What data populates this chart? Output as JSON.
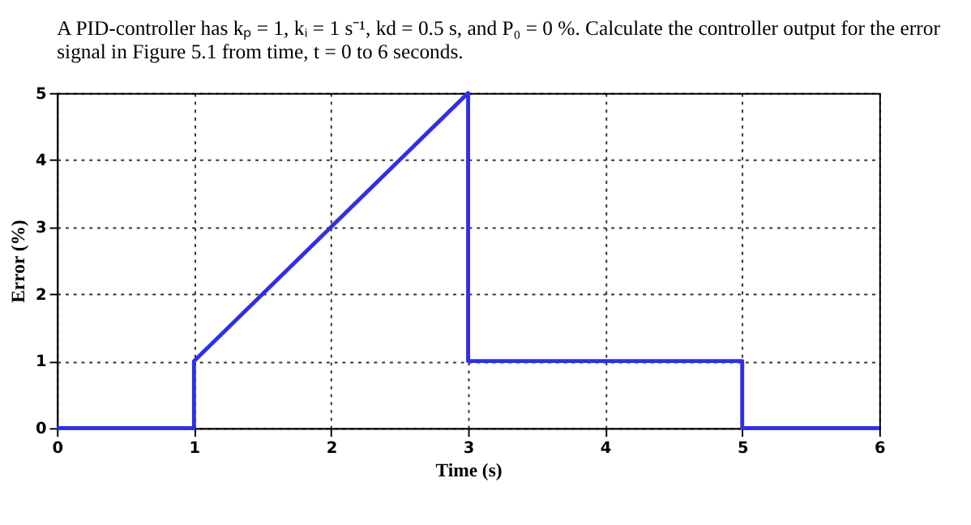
{
  "chart_data": {
    "type": "line",
    "title": [
      "A PID-controller has kₚ = 1, kᵢ = 1 s⁻¹, kd = 0.5 s, and P₀ = 0 %. Calculate the controller output for the error",
      "signal in Figure 5.1 from time, t = 0 to 6 seconds."
    ],
    "xlabel": "Time (s)",
    "ylabel": "Error (%)",
    "series": [
      {
        "color": "#2f2fe8",
        "x": [
          0,
          1,
          1,
          3,
          3,
          5,
          5,
          6
        ],
        "values": [
          0,
          0,
          1,
          5,
          1,
          1,
          0,
          0
        ]
      }
    ],
    "xlim": [
      0,
      6
    ],
    "ylim": [
      0,
      5
    ],
    "xticks": [
      0,
      1,
      2,
      3,
      4,
      5,
      6
    ],
    "yticks": [
      0,
      1,
      2,
      3,
      4,
      5
    ],
    "grid": true,
    "line_style": "solid",
    "marker": "none"
  }
}
